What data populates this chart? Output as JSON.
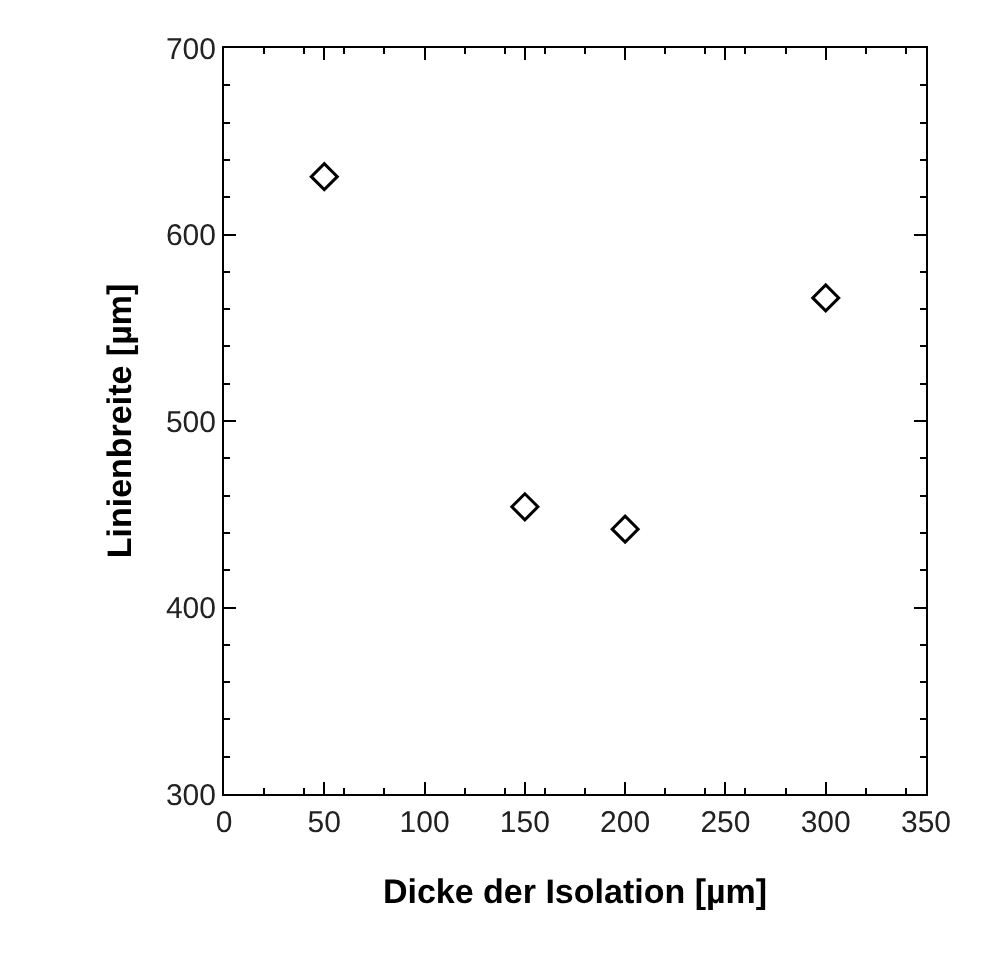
{
  "chart_data": {
    "type": "scatter",
    "xlabel": "Dicke der Isolation [µm]",
    "ylabel": "Linienbreite [µm]",
    "x": [
      50,
      150,
      200,
      300
    ],
    "values": [
      631,
      454,
      442,
      566
    ],
    "color": "#000000",
    "marker": "diamond",
    "xlim": [
      0,
      350
    ],
    "xticks": [
      0,
      50,
      100,
      150,
      200,
      250,
      300,
      350
    ],
    "ylim": [
      300,
      700
    ],
    "yticks": [
      300,
      400,
      500,
      600,
      700
    ],
    "grid": false,
    "legend": false
  }
}
